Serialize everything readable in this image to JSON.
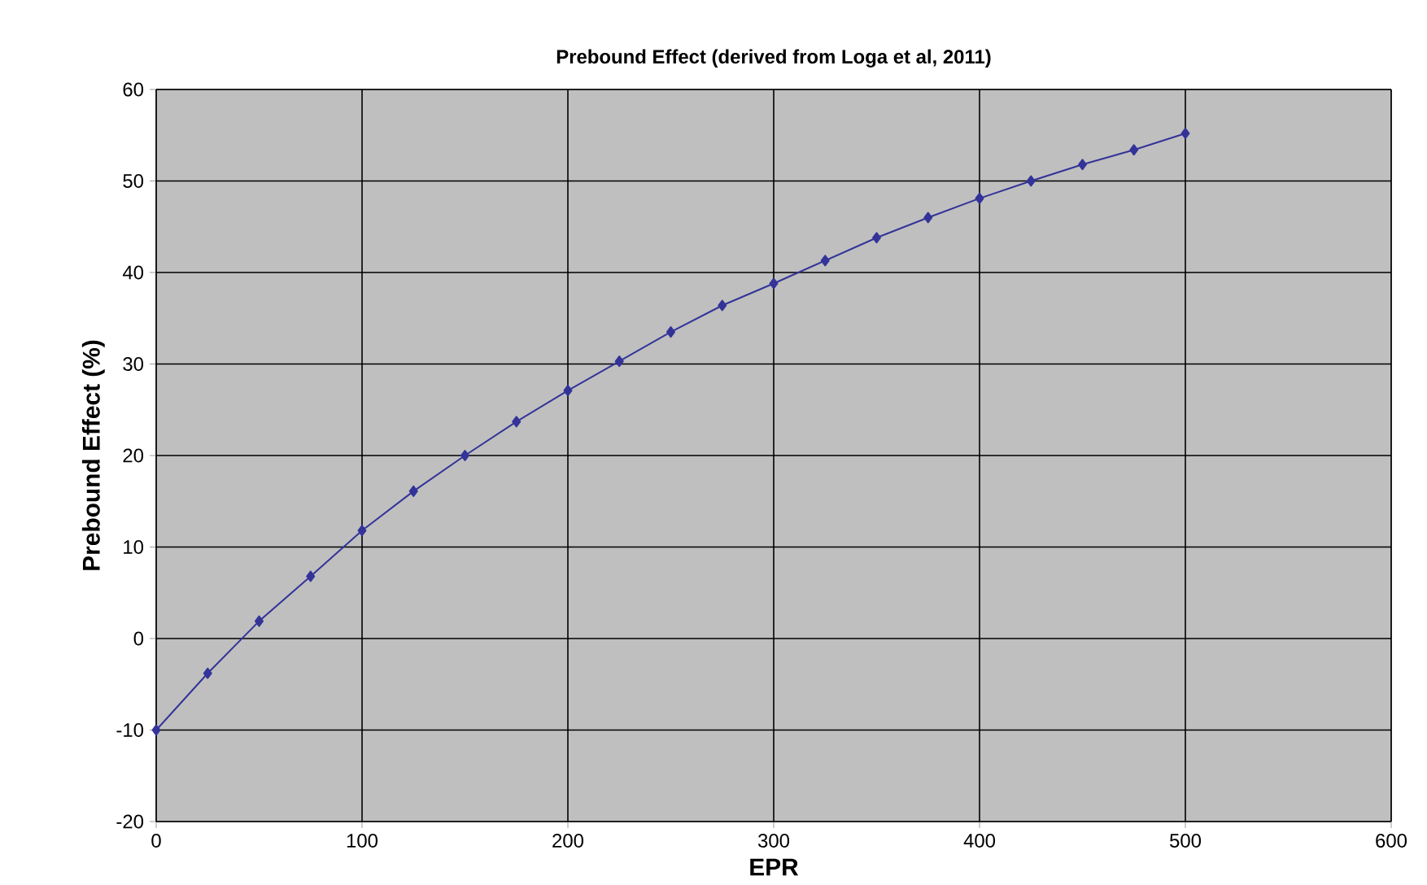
{
  "chart_data": {
    "type": "line",
    "title": "Prebound Effect (derived from Loga et al, 2011)",
    "xlabel": "EPR",
    "ylabel": "Prebound Effect (%)",
    "x": [
      0,
      25,
      50,
      75,
      100,
      125,
      150,
      175,
      200,
      225,
      250,
      275,
      300,
      325,
      350,
      375,
      400,
      425,
      450,
      475,
      500
    ],
    "series": [
      {
        "color": "#333399",
        "values": [
          -10,
          -3.8,
          1.9,
          6.8,
          11.8,
          16.1,
          20,
          23.7,
          27.1,
          30.3,
          33.5,
          36.4,
          38.8,
          41.3,
          43.8,
          46,
          48.1,
          50,
          51.8,
          53.4,
          55.2
        ]
      }
    ],
    "xlim": [
      0,
      600
    ],
    "xticks": [
      0,
      100,
      200,
      300,
      400,
      500,
      600
    ],
    "ylim": [
      -20,
      60
    ],
    "yticks": [
      -20,
      -10,
      0,
      10,
      20,
      30,
      40,
      50,
      60
    ],
    "grid": true,
    "marker": "diamond",
    "line_style": "solid"
  }
}
